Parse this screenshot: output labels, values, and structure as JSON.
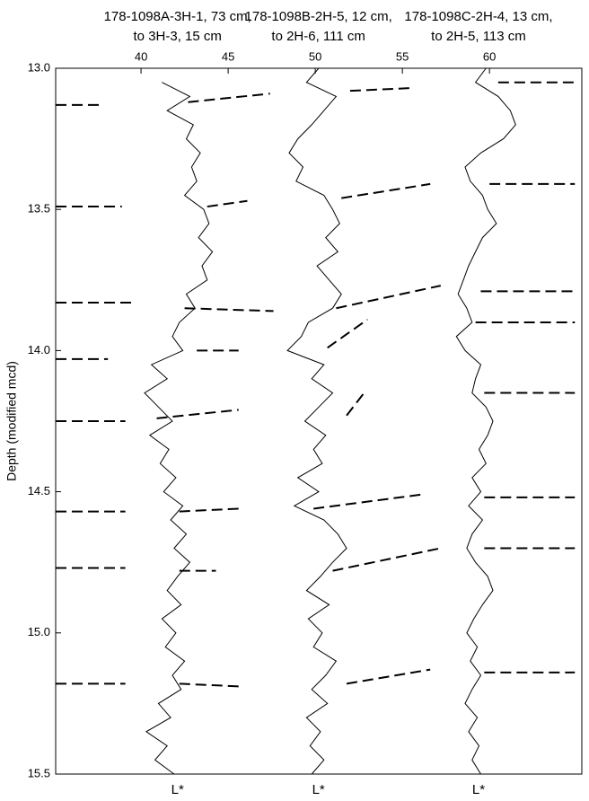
{
  "chart_data": {
    "type": "depth_log",
    "ylabel": "Depth (modified mcd)",
    "xlim": [
      35.1,
      65.3
    ],
    "xticks": [
      40,
      45,
      50,
      55,
      60
    ],
    "ylim": [
      13,
      15.5
    ],
    "yticks": [
      {
        "value": 13,
        "label": "13.0"
      },
      {
        "value": 13.5,
        "label": "13.5"
      },
      {
        "value": 14,
        "label": "14.0"
      },
      {
        "value": 14.5,
        "label": "14.5"
      },
      {
        "value": 15,
        "label": "15.0"
      },
      {
        "value": 15.5,
        "label": "15.5"
      }
    ],
    "y_inverted": true,
    "depths": [
      13,
      13.05,
      13.1,
      13.15,
      13.2,
      13.25,
      13.3,
      13.35,
      13.4,
      13.45,
      13.5,
      13.55,
      13.6,
      13.65,
      13.7,
      13.75,
      13.8,
      13.85,
      13.9,
      13.95,
      14,
      14.05,
      14.1,
      14.15,
      14.2,
      14.25,
      14.3,
      14.35,
      14.4,
      14.45,
      14.5,
      14.55,
      14.6,
      14.65,
      14.7,
      14.75,
      14.8,
      14.85,
      14.9,
      14.95,
      15,
      15.05,
      15.1,
      15.15,
      15.2,
      15.25,
      15.3,
      15.35,
      15.4,
      15.45,
      15.5
    ],
    "series": [
      {
        "header": [
          "178-1098A-3H-1, 73 cm,",
          "to 3H-3, 15 cm"
        ],
        "axis_label": "L*",
        "color": "#000000",
        "values": [
          null,
          41.2,
          42.8,
          41.5,
          43.0,
          42.6,
          43.4,
          42.9,
          43.2,
          42.5,
          43.6,
          43.9,
          43.3,
          44.1,
          43.5,
          43.8,
          42.6,
          43.1,
          42.2,
          41.8,
          42.4,
          40.6,
          41.5,
          40.2,
          41.0,
          41.8,
          40.5,
          41.6,
          41.1,
          42.0,
          41.3,
          42.4,
          41.7,
          42.6,
          41.9,
          42.8,
          42.1,
          41.5,
          42.3,
          41.2,
          42.0,
          41.4,
          42.5,
          41.8,
          42.3,
          41.0,
          41.7,
          40.3,
          41.5,
          40.8,
          41.9
        ]
      },
      {
        "header": [
          "178-1098B-2H-5, 12 cm,",
          "to 2H-6, 111 cm"
        ],
        "axis_label": "L*",
        "color": "#000000",
        "values": [
          50.2,
          49.5,
          51.2,
          50.5,
          49.8,
          49.0,
          48.5,
          49.3,
          48.9,
          50.5,
          51.0,
          51.4,
          50.6,
          51.3,
          50.1,
          50.8,
          51.5,
          51.0,
          49.6,
          49.2,
          48.4,
          50.5,
          49.8,
          51.0,
          50.2,
          49.4,
          50.6,
          49.9,
          50.4,
          49.0,
          50.2,
          48.8,
          50.5,
          51.3,
          51.8,
          51.0,
          50.3,
          49.5,
          50.8,
          49.6,
          50.4,
          49.9,
          51.2,
          50.6,
          49.8,
          50.7,
          49.5,
          50.3,
          49.7,
          50.5,
          49.8
        ]
      },
      {
        "header": [
          "178-1098C-2H-4, 13 cm,",
          "to 2H-5, 113 cm"
        ],
        "axis_label": "L*",
        "color": "#000000",
        "values": [
          59.8,
          59.2,
          60.5,
          61.2,
          61.5,
          60.8,
          59.5,
          58.6,
          58.9,
          59.6,
          59.9,
          60.4,
          59.6,
          59.2,
          58.8,
          58.5,
          58.2,
          58.7,
          59.0,
          58.1,
          58.6,
          59.5,
          59.2,
          59.0,
          59.8,
          60.2,
          59.9,
          59.4,
          59.8,
          59.0,
          59.5,
          58.8,
          59.6,
          59.0,
          58.7,
          59.2,
          59.9,
          60.2,
          59.6,
          59.1,
          58.7,
          59.3,
          58.9,
          59.5,
          59.0,
          58.6,
          59.3,
          58.8,
          59.4,
          59.0,
          59.5
        ]
      }
    ],
    "tie_segments": [
      [
        35.1,
        13.13,
        37.7,
        13.13
      ],
      [
        42.7,
        13.12,
        47.4,
        13.09
      ],
      [
        52.0,
        13.08,
        55.6,
        13.07
      ],
      [
        60.5,
        13.05,
        64.9,
        13.05
      ],
      [
        35.1,
        13.49,
        38.9,
        13.49
      ],
      [
        43.8,
        13.49,
        46.1,
        13.47
      ],
      [
        51.5,
        13.46,
        56.6,
        13.41
      ],
      [
        60.0,
        13.41,
        64.9,
        13.41
      ],
      [
        35.1,
        13.83,
        39.6,
        13.83
      ],
      [
        42.5,
        13.85,
        47.6,
        13.86
      ],
      [
        51.2,
        13.85,
        57.2,
        13.77
      ],
      [
        59.5,
        13.79,
        64.9,
        13.79
      ],
      [
        35.1,
        14.03,
        38.1,
        14.03
      ],
      [
        43.2,
        14.0,
        45.6,
        14.0
      ],
      [
        50.7,
        13.99,
        53.0,
        13.89
      ],
      [
        59.2,
        13.9,
        64.9,
        13.9
      ],
      [
        35.1,
        14.25,
        39.1,
        14.25
      ],
      [
        40.9,
        14.24,
        45.6,
        14.21
      ],
      [
        51.8,
        14.23,
        52.8,
        14.15
      ],
      [
        59.7,
        14.15,
        64.9,
        14.15
      ],
      [
        35.1,
        14.57,
        39.1,
        14.57
      ],
      [
        42.2,
        14.57,
        45.6,
        14.56
      ],
      [
        49.9,
        14.56,
        56.1,
        14.51
      ],
      [
        59.7,
        14.52,
        64.9,
        14.52
      ],
      [
        35.1,
        14.77,
        39.1,
        14.77
      ],
      [
        42.2,
        14.78,
        44.3,
        14.78
      ],
      [
        51.0,
        14.78,
        57.2,
        14.7
      ],
      [
        59.7,
        14.7,
        64.9,
        14.7
      ],
      [
        35.1,
        15.18,
        39.1,
        15.18
      ],
      [
        42.2,
        15.18,
        45.8,
        15.19
      ],
      [
        51.8,
        15.18,
        56.6,
        15.13
      ],
      [
        59.7,
        15.14,
        64.9,
        15.14
      ]
    ]
  }
}
